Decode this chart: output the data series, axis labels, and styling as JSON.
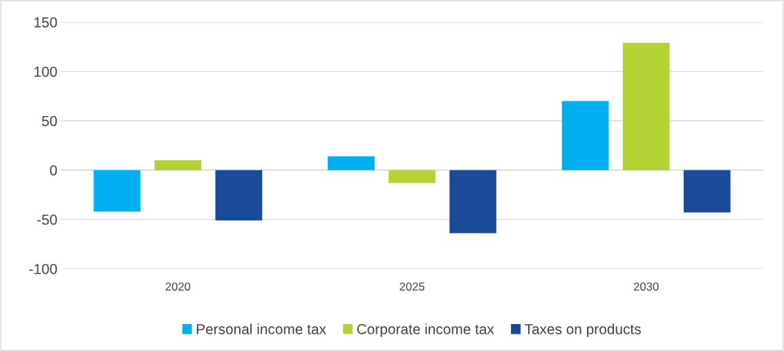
{
  "chart_data": {
    "type": "bar",
    "categories": [
      "2020",
      "2025",
      "2030"
    ],
    "series": [
      {
        "name": "Personal income tax",
        "color": "#00b0f0",
        "values": [
          -42,
          14,
          70
        ]
      },
      {
        "name": "Corporate income tax",
        "color": "#b2d235",
        "values": [
          10,
          -13,
          129
        ]
      },
      {
        "name": "Taxes on products",
        "color": "#1b4a9a",
        "values": [
          -51,
          -64,
          -43
        ]
      }
    ],
    "ylim": [
      -100,
      150
    ],
    "yticks": [
      -100,
      -50,
      0,
      50,
      100,
      150
    ],
    "grid": "y",
    "legend": "bottom"
  }
}
